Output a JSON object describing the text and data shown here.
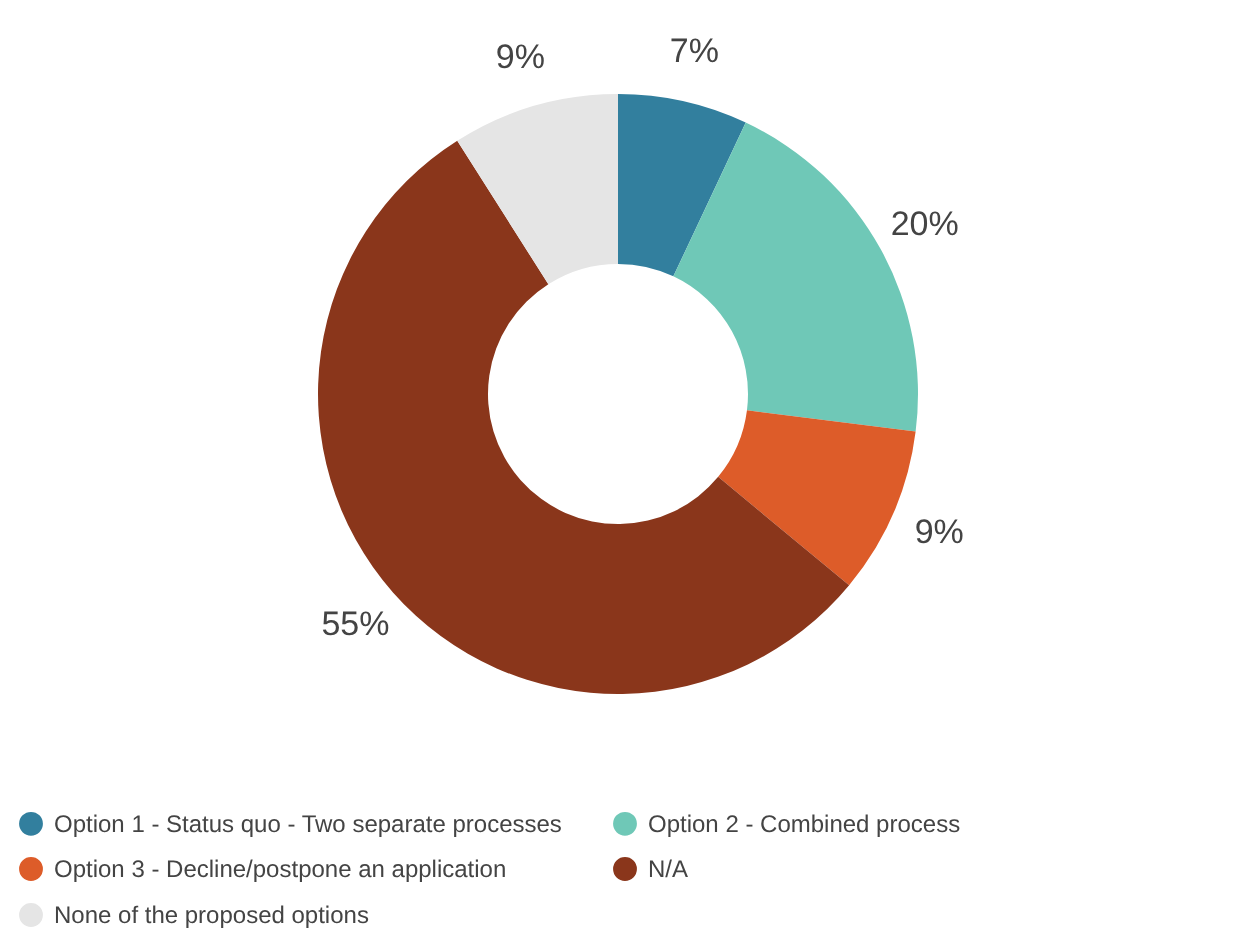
{
  "chart_data": {
    "type": "donut",
    "categories": [
      "Option 1 - Status quo - Two separate processes",
      "Option 2 - Combined process",
      "Option 3 - Decline/postpone an application",
      "N/A",
      "None of the proposed options"
    ],
    "values": [
      7,
      20,
      9,
      55,
      9
    ],
    "colors": [
      "#327f9e",
      "#6fc8b7",
      "#dd5c29",
      "#8a361b",
      "#e5e5e5"
    ],
    "value_labels": [
      "7%",
      "20%",
      "9%",
      "55%",
      "9%"
    ],
    "legend": "bottom"
  }
}
